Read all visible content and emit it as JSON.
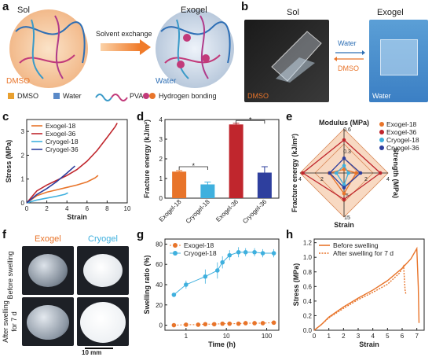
{
  "panels": {
    "a": {
      "label": "a",
      "sol": "Sol",
      "exogel": "Exogel",
      "arrow_text": "Solvent exchange",
      "dmso_label": "DMSO",
      "water_label": "Water",
      "legend": [
        "DMSO",
        "Water",
        "PVA",
        "Hydrogen bonding"
      ]
    },
    "b": {
      "label": "b",
      "sol": "Sol",
      "exogel": "Exogel",
      "water": "Water",
      "dmso": "DMSO",
      "photo_left_caption": "DMSO",
      "photo_right_caption": "Water"
    },
    "c": {
      "label": "c"
    },
    "d": {
      "label": "d"
    },
    "e": {
      "label": "e",
      "modulus_axis": "Modulus (MPa)",
      "strength_axis": "Strength (MPa)",
      "fracture_axis": "Fracture energy (kJ/m²)",
      "strain_axis": "Strain"
    },
    "f": {
      "label": "f",
      "col1": "Exogel",
      "col2": "Cryogel",
      "row1": "Before swelling",
      "row2_a": "After swelling",
      "row2_b": "for 7 d",
      "scale": "10 mm"
    },
    "g": {
      "label": "g"
    },
    "h": {
      "label": "h"
    }
  },
  "colors": {
    "exo18": "#e8742a",
    "exo36": "#c0262d",
    "cryo18": "#3fb0de",
    "cryo36": "#2e3f9e"
  },
  "chart_data": [
    {
      "id": "c",
      "type": "line",
      "xlabel": "Strain",
      "ylabel": "Stress (MPa)",
      "xlim": [
        0,
        10
      ],
      "ylim": [
        0,
        3.5
      ],
      "xticks": [
        0,
        2,
        4,
        6,
        8,
        10
      ],
      "yticks": [
        0,
        1,
        2,
        3
      ],
      "legend": "top-left",
      "series": [
        {
          "name": "Exogel-18",
          "color": "exo18",
          "x": [
            0,
            1,
            2,
            3,
            4,
            5,
            6,
            6.8,
            7.1
          ],
          "y": [
            0,
            0.3,
            0.45,
            0.55,
            0.65,
            0.75,
            0.88,
            1.05,
            1.15
          ]
        },
        {
          "name": "Exogel-36",
          "color": "exo36",
          "x": [
            0,
            1,
            2,
            3,
            4,
            5,
            6,
            7,
            8,
            8.8,
            9.0
          ],
          "y": [
            0,
            0.5,
            0.75,
            0.95,
            1.15,
            1.4,
            1.75,
            2.2,
            2.75,
            3.2,
            3.35
          ]
        },
        {
          "name": "Cryogel-18",
          "color": "cryo18",
          "x": [
            0,
            1,
            2,
            3,
            3.8,
            4.1
          ],
          "y": [
            0,
            0.12,
            0.2,
            0.28,
            0.36,
            0.42
          ]
        },
        {
          "name": "Cryogel-36",
          "color": "cryo36",
          "x": [
            0,
            1,
            2,
            3,
            4,
            4.8
          ],
          "y": [
            0,
            0.35,
            0.6,
            0.9,
            1.25,
            1.55
          ]
        }
      ]
    },
    {
      "id": "d",
      "type": "bar",
      "ylabel": "Fracture energy (kJ/m²)",
      "ylim": [
        0,
        4
      ],
      "yticks": [
        0,
        1,
        2,
        3,
        4
      ],
      "categories": [
        "Exogel-18",
        "Cryogel-18",
        "Exogel-36",
        "Cryogel-36"
      ],
      "values": [
        1.35,
        0.7,
        3.75,
        1.3
      ],
      "errors": [
        0.05,
        0.12,
        0.06,
        0.3
      ],
      "colors": [
        "exo18",
        "cryo18",
        "exo36",
        "cryo36"
      ],
      "annotations": [
        {
          "between": [
            0,
            1
          ],
          "text": "*",
          "y": 1.6
        },
        {
          "between": [
            2,
            3
          ],
          "text": "*",
          "y": 3.95
        }
      ]
    },
    {
      "id": "e",
      "type": "radar",
      "axes": [
        "Modulus (MPa)",
        "Strength (MPa)",
        "Strain",
        "Fracture energy (kJ/m²)"
      ],
      "axis_max": [
        0.6,
        4,
        15,
        4
      ],
      "ticks": [
        [
          "0.6",
          "0.3"
        ],
        [
          "4",
          "2"
        ],
        [
          "15",
          "5"
        ],
        [
          "4",
          "2"
        ]
      ],
      "legend": "top-right",
      "series": [
        {
          "name": "Exogel-18",
          "color": "exo18",
          "values": [
            0.05,
            1.1,
            7,
            1.35
          ]
        },
        {
          "name": "Exogel-36",
          "color": "exo36",
          "values": [
            0.45,
            3.3,
            9,
            3.75
          ]
        },
        {
          "name": "Cryogel-18",
          "color": "cryo18",
          "values": [
            0.1,
            0.4,
            4,
            0.7
          ]
        },
        {
          "name": "Cryogel-36",
          "color": "cryo36",
          "values": [
            0.2,
            1.5,
            5,
            1.3
          ]
        }
      ]
    },
    {
      "id": "g",
      "type": "scatter",
      "xlabel": "Time (h)",
      "ylabel": "Swelling ratio (%)",
      "xscale": "log",
      "xlim": [
        0.3,
        200
      ],
      "ylim": [
        -5,
        85
      ],
      "yticks": [
        0,
        20,
        40,
        60,
        80
      ],
      "xticks": [
        1,
        10,
        100
      ],
      "legend": "top-left",
      "series": [
        {
          "name": "Exogel-18",
          "color": "exo18",
          "x": [
            0.5,
            1,
            2,
            3,
            5,
            8,
            12,
            20,
            30,
            50,
            80,
            150
          ],
          "y": [
            0,
            0.5,
            0.5,
            1,
            1,
            1.5,
            1.5,
            1.5,
            2,
            2,
            2,
            2.5
          ],
          "dashed": true
        },
        {
          "name": "Cryogel-18",
          "color": "cryo18",
          "x": [
            0.5,
            1,
            3,
            6,
            8,
            12,
            20,
            30,
            50,
            80,
            150
          ],
          "y": [
            30,
            40,
            48,
            54,
            62,
            69,
            72,
            72,
            72,
            71,
            71
          ],
          "errors": [
            2,
            4,
            7,
            8,
            6,
            5,
            5,
            4,
            4,
            4,
            4
          ]
        }
      ]
    },
    {
      "id": "h",
      "type": "line",
      "xlabel": "Strain",
      "ylabel": "Stress (MPa)",
      "xlim": [
        0,
        7.5
      ],
      "ylim": [
        0,
        1.25
      ],
      "xticks": [
        0,
        1,
        2,
        3,
        4,
        5,
        6,
        7
      ],
      "yticks": [
        0,
        0.2,
        0.4,
        0.6,
        0.8,
        1.0,
        1.2
      ],
      "legend": "top-left",
      "series": [
        {
          "name": "Before swelling",
          "color": "#e8742a",
          "x": [
            0,
            0.5,
            1,
            2,
            3,
            4,
            5,
            6,
            6.6,
            7.0,
            7.1,
            7.15
          ],
          "y": [
            0,
            0.08,
            0.18,
            0.32,
            0.44,
            0.55,
            0.68,
            0.85,
            0.98,
            1.12,
            0.6,
            0.1
          ],
          "dashed": false
        },
        {
          "name": "After swelling for 7 d",
          "color": "#e8742a",
          "x": [
            0,
            0.5,
            1,
            2,
            3,
            4,
            5,
            5.8,
            6.1,
            6.2,
            6.25
          ],
          "y": [
            0,
            0.08,
            0.17,
            0.3,
            0.42,
            0.52,
            0.63,
            0.78,
            0.88,
            0.55,
            0.5
          ],
          "dashed": true
        }
      ]
    }
  ]
}
